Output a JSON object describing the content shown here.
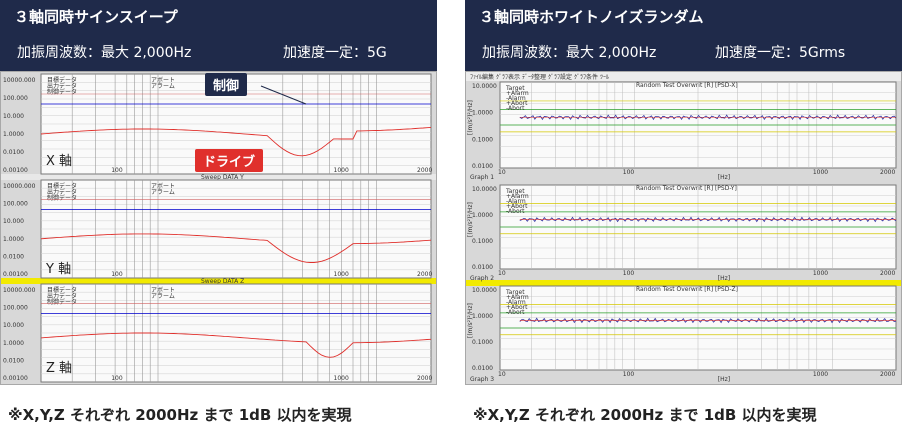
{
  "left": {
    "title": "３軸同時サインスイープ",
    "spec_freq": "加振周波数：最大 2,000Hz",
    "spec_acc": "加速度一定：5G",
    "caption": "※X,Y,Z それぞれ 2000Hz まで 1dB 以内を実現",
    "callout_control": "制御",
    "callout_drive": "ドライブ",
    "axis_labels": [
      "X 軸",
      "Y 軸",
      "Z 軸"
    ],
    "sweep_labels": [
      "Sweep DATA  Y",
      "Sweep DATA  Z"
    ],
    "y_ticks": [
      "10000.000",
      "100.000",
      "10.000",
      "1.0000",
      "0.0100",
      "0.00100"
    ],
    "x_ticks": [
      "100",
      "1000",
      "2000"
    ],
    "colors": {
      "control": "#0000cc",
      "drive": "#e0302c",
      "highlight": "#f2ea00"
    }
  },
  "right": {
    "title": "３軸同時ホワイトノイズランダム",
    "spec_freq": "加振周波数：最大 2,000Hz",
    "spec_acc": "加速度一定：5Grms",
    "caption": "※X,Y,Z それぞれ 2000Hz まで 1dB 以内を実現",
    "menu": [
      "ﾌｧｲﾙ編集",
      "ｸﾞﾗﾌ表示",
      "ﾃﾞｰﾀ整理",
      "ｸﾞﾗﾌ設定",
      "ｸﾞﾗﾌ条件",
      "ﾂｰﾙ"
    ],
    "graph_titles": [
      "Random Test Overwrit [R] [PSD-X]",
      "Random Test Overwrit [R] [PSD-Y]",
      "Random Test Overwrit [R] [PSD-Z]"
    ],
    "graph_names": [
      "Graph 1",
      "Graph 2",
      "Graph 3"
    ],
    "legend": [
      "Target",
      "+Alarm",
      "-Alarm",
      "+Abort",
      "-Abort"
    ],
    "y_ticks": [
      "10.0000",
      "1.0000",
      "0.1000",
      "0.0100"
    ],
    "x_ticks": [
      "10",
      "100",
      "1000",
      "2000"
    ],
    "x_unit": "[Hz]",
    "y_unit": "[(m/s²)²/Hz]",
    "colors": {
      "target": "#e0302c",
      "alarm": "#2ca02c",
      "abort": "#d4c800",
      "measured": "#3030a0"
    }
  }
}
